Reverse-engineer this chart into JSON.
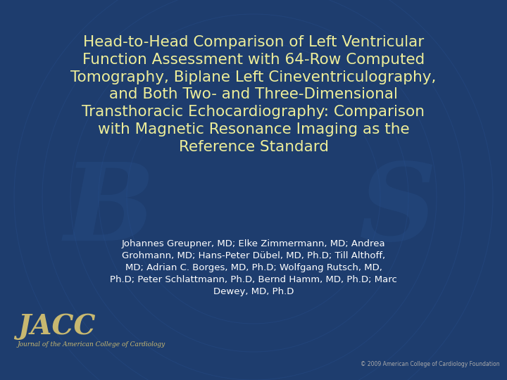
{
  "background_color": "#1e3d6e",
  "title_lines": [
    "Head-to-Head Comparison of Left Ventricular",
    "Function Assessment with 64-Row Computed",
    "Tomography, Biplane Left Cineventriculography,",
    "and Both Two- and Three-Dimensional",
    "Transthoracic Echocardiography: Comparison",
    "with Magnetic Resonance Imaging as the",
    "Reference Standard"
  ],
  "title_color": "#eeee99",
  "title_fontsize": 15.5,
  "authors_lines": [
    "Johannes Greupner, MD; Elke Zimmermann, MD; Andrea",
    "Grohmann, MD; Hans-Peter Dübel, MD, Ph.D; Till Althoff,",
    "MD; Adrian C. Borges, MD, Ph.D; Wolfgang Rutsch, MD,",
    "Ph.D; Peter Schlattmann, Ph.D, Bernd Hamm, MD, Ph.D; Marc",
    "Dewey, MD, Ph.D"
  ],
  "authors_color": "#ffffff",
  "authors_fontsize": 9.5,
  "jacc_text": "JACC",
  "jacc_subtitle": "Journal of the American College of Cardiology",
  "jacc_color": "#c8b870",
  "jacc_fontsize": 28,
  "jacc_subtitle_fontsize": 6.5,
  "copyright_text": "© 2009 American College of Cardiology Foundation",
  "copyright_color": "#aaaaaa",
  "copyright_fontsize": 5.5,
  "watermark_color": "#274f8a",
  "arc_color": "#2a5292"
}
